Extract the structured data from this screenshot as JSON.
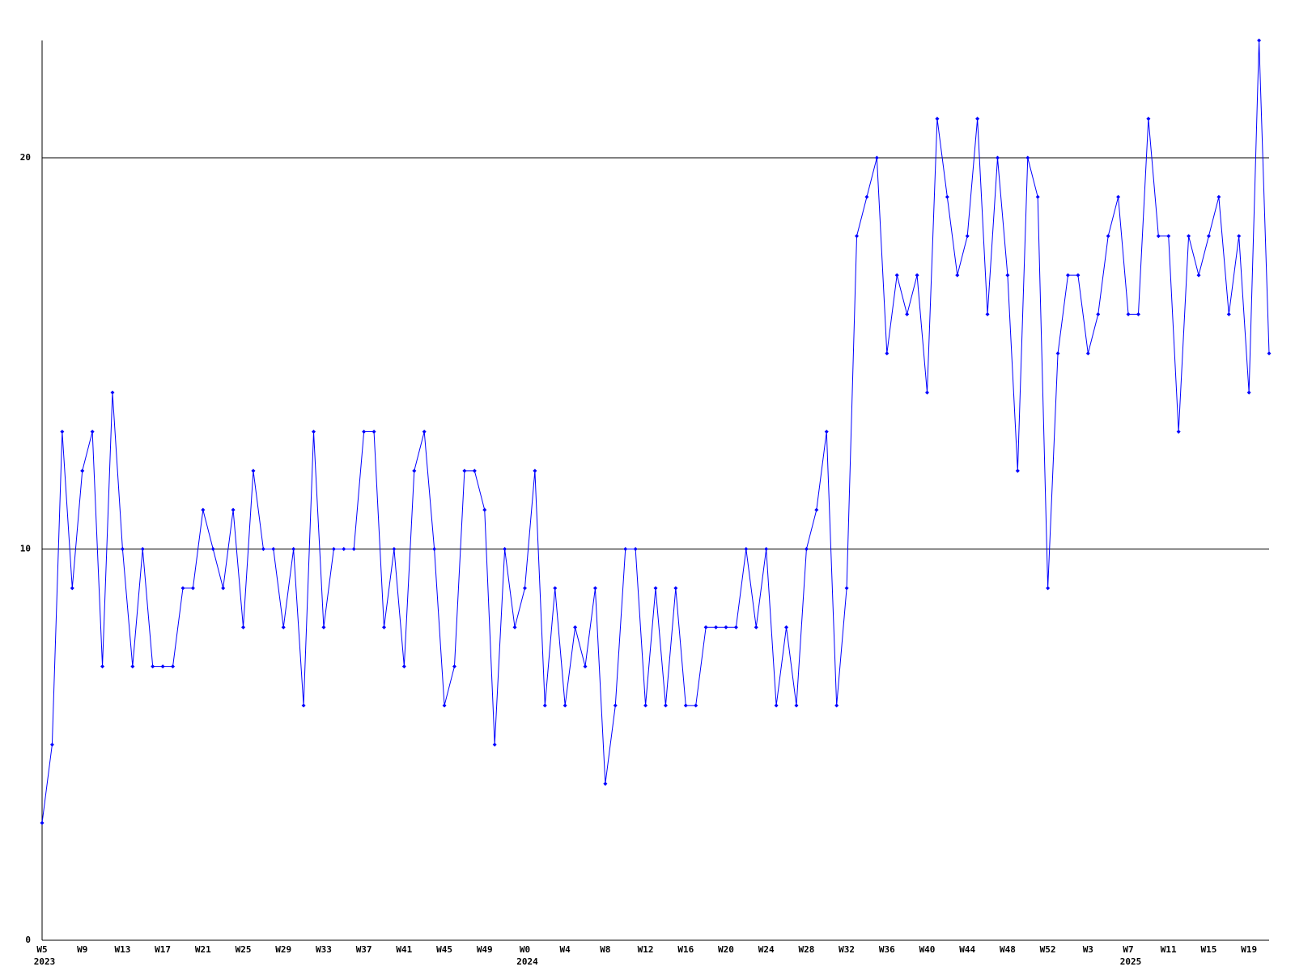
{
  "chart_data": {
    "type": "line",
    "categories": [
      "W5",
      null,
      null,
      null,
      "W9",
      null,
      null,
      null,
      "W13",
      null,
      null,
      null,
      "W17",
      null,
      null,
      null,
      "W21",
      null,
      null,
      null,
      "W25",
      null,
      null,
      null,
      "W29",
      null,
      null,
      null,
      "W33",
      null,
      null,
      null,
      "W37",
      null,
      null,
      null,
      "W41",
      null,
      null,
      null,
      "W45",
      null,
      null,
      null,
      "W49",
      null,
      null,
      null,
      "W0",
      null,
      null,
      null,
      "W4",
      null,
      null,
      null,
      "W8",
      null,
      null,
      null,
      "W12",
      null,
      null,
      null,
      "W16",
      null,
      null,
      null,
      "W20",
      null,
      null,
      null,
      "W24",
      null,
      null,
      null,
      "W28",
      null,
      null,
      null,
      "W32",
      null,
      null,
      null,
      "W36",
      null,
      null,
      null,
      "W40",
      null,
      null,
      null,
      "W44",
      null,
      null,
      null,
      "W48",
      null,
      null,
      null,
      "W52",
      null,
      null,
      null,
      "W3",
      null,
      null,
      null,
      "W7",
      null,
      null,
      null,
      "W11",
      null,
      null,
      null,
      "W15",
      null,
      null,
      null,
      "W19",
      null,
      null
    ],
    "years": [
      "2023",
      null,
      null,
      null,
      null,
      null,
      null,
      null,
      null,
      null,
      null,
      null,
      null,
      null,
      null,
      null,
      null,
      null,
      null,
      null,
      null,
      null,
      null,
      null,
      null,
      null,
      null,
      null,
      null,
      null,
      null,
      null,
      null,
      null,
      null,
      null,
      null,
      null,
      null,
      null,
      null,
      null,
      null,
      null,
      null,
      null,
      null,
      null,
      "2024",
      null,
      null,
      null,
      null,
      null,
      null,
      null,
      null,
      null,
      null,
      null,
      null,
      null,
      null,
      null,
      null,
      null,
      null,
      null,
      null,
      null,
      null,
      null,
      null,
      null,
      null,
      null,
      null,
      null,
      null,
      null,
      null,
      null,
      null,
      null,
      null,
      null,
      null,
      null,
      null,
      null,
      null,
      null,
      null,
      null,
      null,
      null,
      null,
      null,
      null,
      null,
      null,
      null,
      null,
      null,
      null,
      null,
      null,
      null,
      "2025",
      null,
      null,
      null,
      null,
      null,
      null,
      null,
      null,
      null,
      null,
      null,
      null,
      null,
      null,
      null,
      null,
      null,
      null
    ],
    "values": [
      3,
      5,
      13,
      9,
      12,
      13,
      7,
      14,
      10,
      7,
      10,
      7,
      7,
      7,
      9,
      9,
      11,
      10,
      9,
      11,
      8,
      12,
      10,
      10,
      8,
      10,
      6,
      13,
      8,
      10,
      10,
      10,
      13,
      13,
      8,
      10,
      7,
      12,
      13,
      10,
      6,
      7,
      12,
      12,
      11,
      5,
      10,
      8,
      9,
      12,
      6,
      9,
      6,
      8,
      7,
      9,
      4,
      6,
      10,
      10,
      6,
      9,
      6,
      9,
      6,
      6,
      8,
      8,
      8,
      8,
      10,
      8,
      10,
      6,
      8,
      6,
      10,
      11,
      13,
      6,
      9,
      18,
      19,
      20,
      15,
      17,
      16,
      17,
      14,
      21,
      19,
      17,
      18,
      21,
      16,
      20,
      17,
      12,
      20,
      19,
      9,
      15,
      17,
      17,
      15,
      16,
      18,
      19,
      16,
      16,
      21,
      18,
      18,
      13,
      18,
      17,
      18,
      19,
      16,
      18,
      14,
      23,
      15
    ],
    "color": "#0000ff",
    "ylim": [
      0,
      23
    ],
    "yticks": [
      0,
      10,
      20
    ],
    "grid": true
  }
}
